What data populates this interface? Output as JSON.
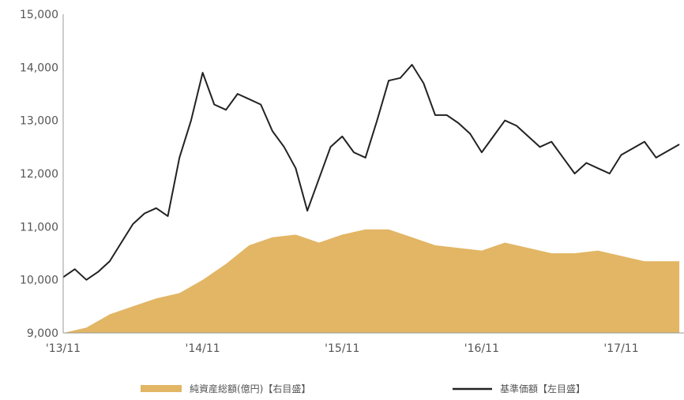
{
  "chart_data": {
    "type": "area+line",
    "x_tick_labels": [
      "'13/11",
      "'14/11",
      "'15/11",
      "'16/11",
      "'17/11"
    ],
    "y_left": {
      "ticks": [
        "9,000",
        "10,000",
        "11,000",
        "12,000",
        "13,000",
        "14,000",
        "15,000"
      ],
      "range": [
        9000,
        15000
      ]
    },
    "grid": false,
    "legend": {
      "placement": "bottom",
      "items": [
        {
          "label": "純資産総額(億円)【右目盛】",
          "color": "#e2b665",
          "kind": "area"
        },
        {
          "label": "基準価額【左目盛】",
          "color": "#222222",
          "kind": "line"
        }
      ]
    },
    "series": [
      {
        "name": "基準価額【左目盛】",
        "kind": "line",
        "axis": "left",
        "color": "#222222",
        "points": [
          [
            "2013-11",
            10050
          ],
          [
            "2013-12",
            10200
          ],
          [
            "2014-01",
            10000
          ],
          [
            "2014-02",
            10150
          ],
          [
            "2014-03",
            10350
          ],
          [
            "2014-04",
            10700
          ],
          [
            "2014-05",
            11050
          ],
          [
            "2014-06",
            11250
          ],
          [
            "2014-07",
            11350
          ],
          [
            "2014-08",
            11200
          ],
          [
            "2014-09",
            12300
          ],
          [
            "2014-10",
            13000
          ],
          [
            "2014-11",
            13900
          ],
          [
            "2014-12",
            13300
          ],
          [
            "2015-01",
            13200
          ],
          [
            "2015-02",
            13500
          ],
          [
            "2015-03",
            13400
          ],
          [
            "2015-04",
            13300
          ],
          [
            "2015-05",
            12800
          ],
          [
            "2015-06",
            12500
          ],
          [
            "2015-07",
            12100
          ],
          [
            "2015-08",
            11300
          ],
          [
            "2015-09",
            11900
          ],
          [
            "2015-10",
            12500
          ],
          [
            "2015-11",
            12700
          ],
          [
            "2015-12",
            12400
          ],
          [
            "2016-01",
            12300
          ],
          [
            "2016-02",
            13000
          ],
          [
            "2016-03",
            13750
          ],
          [
            "2016-04",
            13800
          ],
          [
            "2016-05",
            14050
          ],
          [
            "2016-06",
            13700
          ],
          [
            "2016-07",
            13100
          ],
          [
            "2016-08",
            13100
          ],
          [
            "2016-09",
            12950
          ],
          [
            "2016-10",
            12750
          ],
          [
            "2016-11",
            12400
          ],
          [
            "2016-12",
            12700
          ],
          [
            "2017-01",
            13000
          ],
          [
            "2017-02",
            12900
          ],
          [
            "2017-03",
            12700
          ],
          [
            "2017-04",
            12500
          ],
          [
            "2017-05",
            12600
          ],
          [
            "2017-06",
            12300
          ],
          [
            "2017-07",
            12000
          ],
          [
            "2017-08",
            12200
          ],
          [
            "2017-09",
            12100
          ],
          [
            "2017-10",
            12000
          ],
          [
            "2017-11",
            12350
          ],
          [
            "2018-01",
            12600
          ],
          [
            "2018-02",
            12300
          ],
          [
            "2018-04",
            12550
          ]
        ]
      },
      {
        "name": "純資産総額(億円)【右目盛】",
        "kind": "area",
        "axis": "right",
        "color": "#e2b665",
        "points_on_left_scale": [
          [
            "2013-11",
            9000
          ],
          [
            "2014-01",
            9100
          ],
          [
            "2014-03",
            9350
          ],
          [
            "2014-05",
            9500
          ],
          [
            "2014-07",
            9650
          ],
          [
            "2014-09",
            9750
          ],
          [
            "2014-11",
            10000
          ],
          [
            "2015-01",
            10300
          ],
          [
            "2015-03",
            10650
          ],
          [
            "2015-05",
            10800
          ],
          [
            "2015-07",
            10850
          ],
          [
            "2015-09",
            10700
          ],
          [
            "2015-11",
            10850
          ],
          [
            "2016-01",
            10950
          ],
          [
            "2016-03",
            10950
          ],
          [
            "2016-05",
            10800
          ],
          [
            "2016-07",
            10650
          ],
          [
            "2016-09",
            10600
          ],
          [
            "2016-11",
            10550
          ],
          [
            "2017-01",
            10700
          ],
          [
            "2017-03",
            10600
          ],
          [
            "2017-05",
            10500
          ],
          [
            "2017-07",
            10500
          ],
          [
            "2017-09",
            10550
          ],
          [
            "2017-11",
            10450
          ],
          [
            "2018-01",
            10350
          ],
          [
            "2018-04",
            10350
          ]
        ]
      }
    ]
  }
}
